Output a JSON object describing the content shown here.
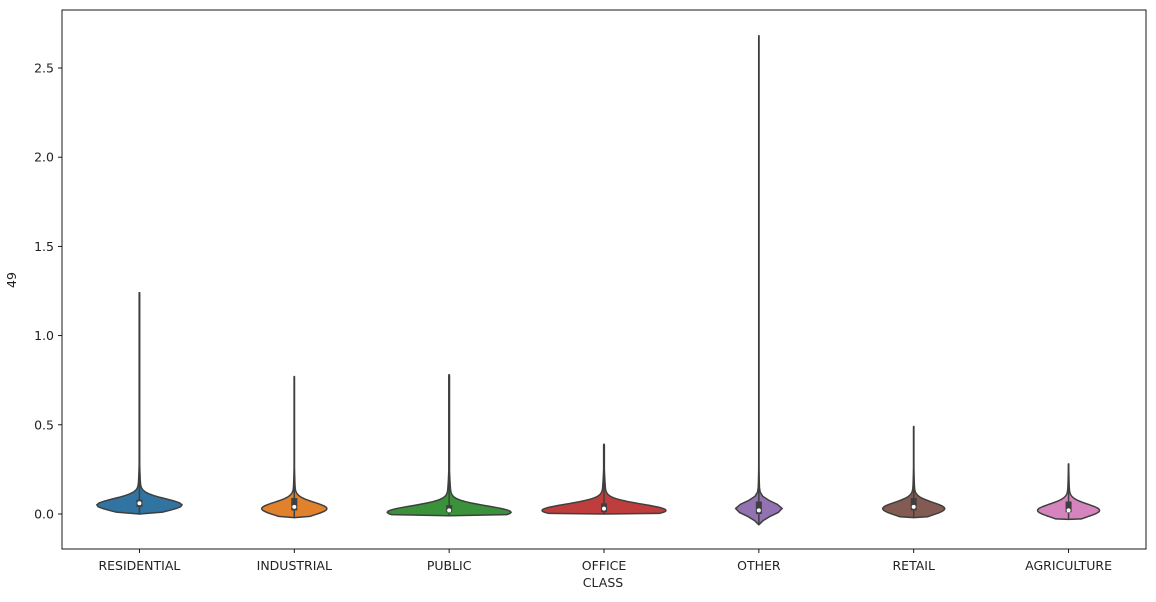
{
  "chart_data": {
    "type": "violin",
    "xlabel": "CLASS",
    "ylabel": "49",
    "ylim": [
      -0.2,
      2.8
    ],
    "yticks": [
      "0.0",
      "0.5",
      "1.0",
      "1.5",
      "2.0",
      "2.5"
    ],
    "ytick_values": [
      0.0,
      0.5,
      1.0,
      1.5,
      2.0,
      2.5
    ],
    "categories": [
      "RESIDENTIAL",
      "INDUSTRIAL",
      "PUBLIC",
      "OFFICE",
      "OTHER",
      "RETAIL",
      "AGRICULTURE"
    ],
    "grid": false,
    "series": [
      {
        "category": "RESIDENTIAL",
        "color": "#3274a1",
        "min": 0.0,
        "max": 1.24,
        "q1": 0.04,
        "median": 0.06,
        "q3": 0.08,
        "mode": 0.05,
        "width": 0.55
      },
      {
        "category": "INDUSTRIAL",
        "color": "#e1812c",
        "min": -0.02,
        "max": 0.77,
        "q1": 0.02,
        "median": 0.04,
        "q3": 0.09,
        "mode": 0.03,
        "width": 0.42
      },
      {
        "category": "PUBLIC",
        "color": "#3a923a",
        "min": -0.01,
        "max": 0.78,
        "q1": 0.01,
        "median": 0.02,
        "q3": 0.05,
        "mode": 0.01,
        "width": 0.8
      },
      {
        "category": "OFFICE",
        "color": "#c03d3e",
        "min": 0.0,
        "max": 0.39,
        "q1": 0.01,
        "median": 0.03,
        "q3": 0.06,
        "mode": 0.02,
        "width": 0.8
      },
      {
        "category": "OTHER",
        "color": "#9372b2",
        "min": -0.06,
        "max": 2.68,
        "q1": 0.0,
        "median": 0.02,
        "q3": 0.07,
        "mode": 0.03,
        "width": 0.3
      },
      {
        "category": "RETAIL",
        "color": "#845b53",
        "min": -0.02,
        "max": 0.49,
        "q1": 0.02,
        "median": 0.04,
        "q3": 0.09,
        "mode": 0.03,
        "width": 0.4
      },
      {
        "category": "AGRICULTURE",
        "color": "#d684bd",
        "min": -0.03,
        "max": 0.28,
        "q1": 0.01,
        "median": 0.02,
        "q3": 0.07,
        "mode": 0.02,
        "width": 0.4
      }
    ]
  }
}
